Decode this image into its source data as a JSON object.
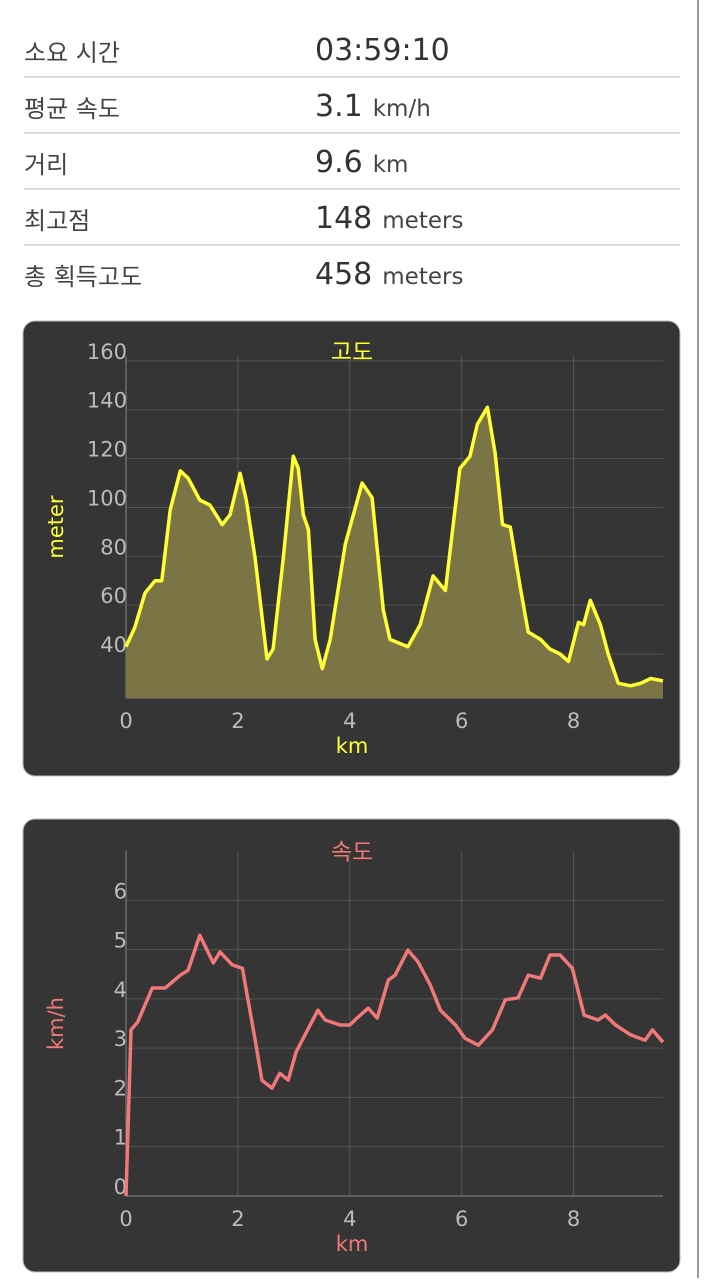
{
  "stats": [
    {
      "label": "소요 시간",
      "value": "03:59:10"
    },
    {
      "label": "평균 속도",
      "value": 3.1,
      "unit": "km/h"
    },
    {
      "label": "거리",
      "value": 9.6,
      "unit": "km"
    },
    {
      "label": "최고점",
      "value": 148,
      "unit": "meters"
    },
    {
      "label": "총 획득고도",
      "value": 458,
      "unit": "meters"
    }
  ],
  "chart_data": [
    {
      "type": "area",
      "title": "고도",
      "x_label": "km",
      "y_label": "meter",
      "color": "#ffff33",
      "fill": "#7b7545",
      "grid": true,
      "xlim": [
        0,
        9.6
      ],
      "xticks": [
        0,
        2,
        4,
        6,
        8
      ],
      "ylim": [
        22,
        162
      ],
      "yticks": [
        40,
        60,
        80,
        100,
        120,
        140,
        160
      ],
      "x": [
        0,
        0.16,
        0.34,
        0.52,
        0.64,
        0.79,
        0.97,
        1.11,
        1.32,
        1.5,
        1.72,
        1.86,
        2.04,
        2.15,
        2.31,
        2.52,
        2.63,
        2.81,
        2.99,
        3.08,
        3.17,
        3.26,
        3.38,
        3.51,
        3.65,
        3.92,
        4.22,
        4.4,
        4.6,
        4.72,
        5.04,
        5.26,
        5.49,
        5.71,
        5.97,
        6.15,
        6.28,
        6.46,
        6.6,
        6.73,
        6.87,
        7.05,
        7.19,
        7.41,
        7.58,
        7.76,
        7.91,
        8.09,
        8.18,
        8.3,
        8.48,
        8.62,
        8.8,
        9.02,
        9.2,
        9.38,
        9.6
      ],
      "values": [
        43,
        51,
        65,
        70,
        70,
        99,
        115,
        112,
        103,
        101,
        93,
        97,
        114,
        103,
        79,
        38,
        42,
        79,
        121,
        116,
        97,
        91,
        46,
        34,
        46,
        85,
        110,
        104,
        58,
        46,
        43,
        52,
        72,
        66,
        116,
        121,
        134,
        141,
        122,
        93,
        92,
        67,
        49,
        46,
        42,
        40,
        37,
        53,
        52,
        62,
        52,
        40,
        28,
        27,
        28,
        30,
        29
      ]
    },
    {
      "type": "line",
      "title": "속도",
      "x_label": "km",
      "y_label": "km/h",
      "color": "#f07878",
      "grid": true,
      "xlim": [
        0,
        9.6
      ],
      "xticks": [
        0,
        2,
        4,
        6,
        8
      ],
      "ylim": [
        0,
        7
      ],
      "yticks": [
        0,
        1,
        2,
        3,
        4,
        5,
        6
      ],
      "x": [
        0,
        0.09,
        0.21,
        0.47,
        0.7,
        0.97,
        1.11,
        1.32,
        1.56,
        1.68,
        1.9,
        2.08,
        2.31,
        2.43,
        2.61,
        2.75,
        2.9,
        3.04,
        3.2,
        3.43,
        3.56,
        3.83,
        4.0,
        4.13,
        4.33,
        4.49,
        4.69,
        4.81,
        5.04,
        5.22,
        5.44,
        5.62,
        5.89,
        6.06,
        6.3,
        6.55,
        6.78,
        7.01,
        7.19,
        7.41,
        7.58,
        7.76,
        7.98,
        8.19,
        8.44,
        8.57,
        8.75,
        9.02,
        9.28,
        9.41,
        9.6
      ],
      "values": [
        0,
        3.37,
        3.53,
        4.22,
        4.22,
        4.48,
        4.58,
        5.29,
        4.73,
        4.95,
        4.69,
        4.62,
        3.16,
        2.35,
        2.19,
        2.49,
        2.35,
        2.92,
        3.27,
        3.77,
        3.57,
        3.47,
        3.47,
        3.61,
        3.81,
        3.61,
        4.38,
        4.48,
        4.99,
        4.75,
        4.28,
        3.77,
        3.47,
        3.2,
        3.06,
        3.37,
        3.98,
        4.02,
        4.48,
        4.42,
        4.89,
        4.89,
        4.62,
        3.67,
        3.57,
        3.67,
        3.47,
        3.27,
        3.16,
        3.37,
        3.12
      ]
    }
  ]
}
